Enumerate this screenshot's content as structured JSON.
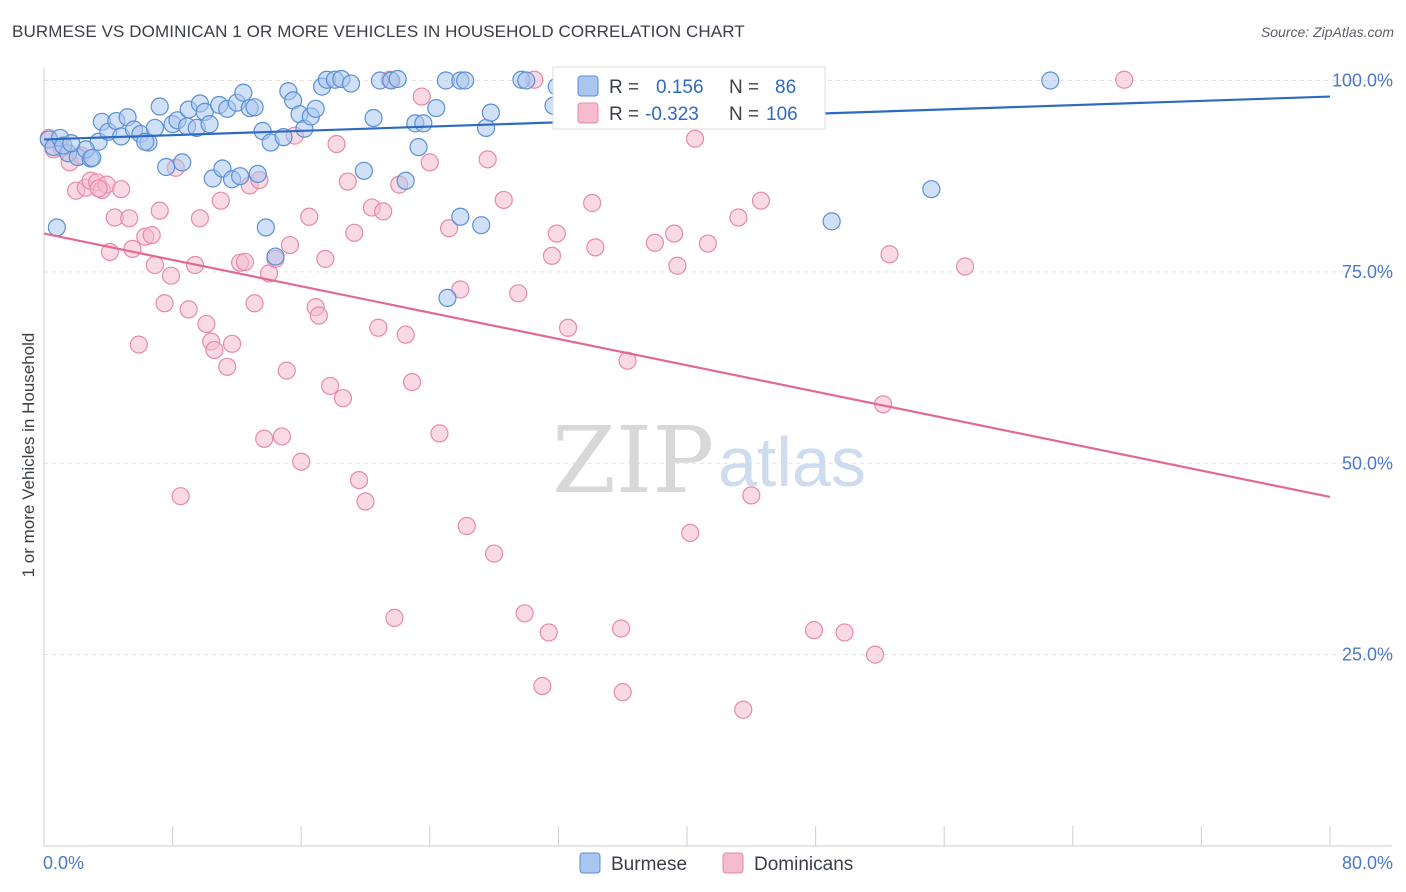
{
  "title": "BURMESE VS DOMINICAN 1 OR MORE VEHICLES IN HOUSEHOLD CORRELATION CHART",
  "source": "Source: ZipAtlas.com",
  "watermark": {
    "zip": "ZIP",
    "atlas": "atlas"
  },
  "colors": {
    "burmese_fill": "#a9c6ee",
    "burmese_stroke": "#5b8fd6",
    "burmese_line": "#2f6ac2",
    "dominican_fill": "#f4bccd",
    "dominican_stroke": "#e88aa8",
    "dominican_line": "#e06a94",
    "grid": "#e3e3e3",
    "tick_label": "#4a78c8"
  },
  "legend": {
    "rows": [
      {
        "r_label": "R =",
        "r_value": "0.156",
        "n_label": "N =",
        "n_value": "86",
        "series": "burmese"
      },
      {
        "r_label": "R =",
        "r_value": "-0.323",
        "n_label": "N =",
        "n_value": "106",
        "series": "dominican"
      }
    ]
  },
  "bottom_legend": [
    "Burmese",
    "Dominicans"
  ],
  "chart_data": {
    "type": "scatter",
    "title": "BURMESE VS DOMINICAN 1 OR MORE VEHICLES IN HOUSEHOLD CORRELATION CHART",
    "xlabel": "",
    "ylabel": "1 or more Vehicles in Household",
    "xlim": [
      0,
      80
    ],
    "ylim": [
      0,
      105
    ],
    "x_tick_labels": [
      "0.0%",
      "80.0%"
    ],
    "y_tick_labels": [
      {
        "value": 100,
        "label": "100.0%"
      },
      {
        "value": 75,
        "label": "75.0%"
      },
      {
        "value": 50,
        "label": "50.0%"
      },
      {
        "value": 25,
        "label": "25.0%"
      }
    ],
    "grid": true,
    "legend_position": "top-center",
    "series": [
      {
        "name": "Burmese",
        "r": 0.156,
        "n": 86,
        "trend": {
          "x": [
            0,
            80
          ],
          "y": [
            92.3,
            97.9
          ]
        },
        "points": [
          [
            0.3,
            92.3
          ],
          [
            0.6,
            91.3
          ],
          [
            1.0,
            92.5
          ],
          [
            1.5,
            90.5
          ],
          [
            2.1,
            90.0
          ],
          [
            2.9,
            89.8
          ],
          [
            3.4,
            92.0
          ],
          [
            3.6,
            94.6
          ],
          [
            4.0,
            93.3
          ],
          [
            4.5,
            94.7
          ],
          [
            4.8,
            92.7
          ],
          [
            5.2,
            95.2
          ],
          [
            5.6,
            93.6
          ],
          [
            6.0,
            93.0
          ],
          [
            6.5,
            91.9
          ],
          [
            6.9,
            93.8
          ],
          [
            7.2,
            96.6
          ],
          [
            7.6,
            88.7
          ],
          [
            8.0,
            94.3
          ],
          [
            8.3,
            94.8
          ],
          [
            8.6,
            89.3
          ],
          [
            8.9,
            94.0
          ],
          [
            9.0,
            96.2
          ],
          [
            9.5,
            93.8
          ],
          [
            9.7,
            97.0
          ],
          [
            10.0,
            95.9
          ],
          [
            10.3,
            94.3
          ],
          [
            10.5,
            87.2
          ],
          [
            10.9,
            96.8
          ],
          [
            11.1,
            88.5
          ],
          [
            11.4,
            96.3
          ],
          [
            11.7,
            87.1
          ],
          [
            12.0,
            97.1
          ],
          [
            12.4,
            98.4
          ],
          [
            12.8,
            96.4
          ],
          [
            13.1,
            96.5
          ],
          [
            13.3,
            87.8
          ],
          [
            13.6,
            93.4
          ],
          [
            13.8,
            80.8
          ],
          [
            14.1,
            91.9
          ],
          [
            14.4,
            77.0
          ],
          [
            14.9,
            92.6
          ],
          [
            15.2,
            98.6
          ],
          [
            15.5,
            97.4
          ],
          [
            15.9,
            95.6
          ],
          [
            16.2,
            93.7
          ],
          [
            16.6,
            95.3
          ],
          [
            16.9,
            96.3
          ],
          [
            17.3,
            99.2
          ],
          [
            17.6,
            100.1
          ],
          [
            18.1,
            100.1
          ],
          [
            18.5,
            100.2
          ],
          [
            19.1,
            99.6
          ],
          [
            19.9,
            88.2
          ],
          [
            20.5,
            95.1
          ],
          [
            20.9,
            100.0
          ],
          [
            21.6,
            100.0
          ],
          [
            22.0,
            100.2
          ],
          [
            22.5,
            86.9
          ],
          [
            23.1,
            94.4
          ],
          [
            23.3,
            91.3
          ],
          [
            23.6,
            94.4
          ],
          [
            24.4,
            96.4
          ],
          [
            25.0,
            100.0
          ],
          [
            25.9,
            100.0
          ],
          [
            26.2,
            100.0
          ],
          [
            25.1,
            71.6
          ],
          [
            25.9,
            82.2
          ],
          [
            27.2,
            81.1
          ],
          [
            27.5,
            93.8
          ],
          [
            27.8,
            95.8
          ],
          [
            29.7,
            100.1
          ],
          [
            30.0,
            100.0
          ],
          [
            31.7,
            96.7
          ],
          [
            31.9,
            99.2
          ],
          [
            34.5,
            100.0
          ],
          [
            49.0,
            81.6
          ],
          [
            55.2,
            85.8
          ],
          [
            62.6,
            100.0
          ],
          [
            0.8,
            80.8
          ],
          [
            1.2,
            91.5
          ],
          [
            2.6,
            91.0
          ],
          [
            3.0,
            89.9
          ],
          [
            1.7,
            91.8
          ],
          [
            6.3,
            92.0
          ],
          [
            12.2,
            87.5
          ]
        ]
      },
      {
        "name": "Dominicans",
        "r": -0.323,
        "n": 106,
        "trend": {
          "x": [
            0,
            80
          ],
          "y": [
            80.0,
            45.6
          ]
        },
        "points": [
          [
            0.3,
            92.5
          ],
          [
            0.6,
            91.0
          ],
          [
            1.1,
            91.2
          ],
          [
            1.6,
            89.3
          ],
          [
            2.0,
            85.6
          ],
          [
            2.3,
            90.2
          ],
          [
            2.6,
            86.0
          ],
          [
            2.9,
            86.9
          ],
          [
            3.3,
            86.7
          ],
          [
            3.6,
            85.7
          ],
          [
            3.9,
            86.4
          ],
          [
            4.1,
            77.6
          ],
          [
            4.4,
            82.1
          ],
          [
            4.8,
            85.8
          ],
          [
            5.3,
            82.0
          ],
          [
            5.5,
            78.0
          ],
          [
            5.9,
            65.5
          ],
          [
            6.3,
            79.6
          ],
          [
            6.7,
            79.8
          ],
          [
            6.9,
            75.9
          ],
          [
            7.2,
            83.0
          ],
          [
            7.5,
            70.9
          ],
          [
            7.9,
            74.5
          ],
          [
            8.2,
            88.6
          ],
          [
            8.5,
            45.7
          ],
          [
            9.0,
            70.1
          ],
          [
            9.4,
            75.9
          ],
          [
            9.7,
            82.0
          ],
          [
            10.1,
            68.2
          ],
          [
            10.4,
            65.9
          ],
          [
            10.6,
            64.8
          ],
          [
            11.0,
            84.3
          ],
          [
            11.4,
            62.6
          ],
          [
            11.7,
            65.6
          ],
          [
            12.2,
            76.2
          ],
          [
            12.5,
            76.3
          ],
          [
            12.8,
            86.3
          ],
          [
            13.1,
            70.9
          ],
          [
            13.4,
            87.0
          ],
          [
            13.7,
            53.2
          ],
          [
            14.0,
            74.8
          ],
          [
            14.4,
            76.7
          ],
          [
            14.8,
            53.5
          ],
          [
            15.1,
            62.1
          ],
          [
            15.3,
            78.5
          ],
          [
            15.6,
            92.8
          ],
          [
            16.0,
            50.2
          ],
          [
            16.5,
            82.2
          ],
          [
            16.9,
            70.4
          ],
          [
            17.1,
            69.3
          ],
          [
            17.5,
            76.7
          ],
          [
            17.8,
            60.1
          ],
          [
            18.2,
            91.7
          ],
          [
            18.6,
            58.5
          ],
          [
            18.9,
            86.8
          ],
          [
            19.3,
            80.1
          ],
          [
            19.6,
            47.8
          ],
          [
            20.0,
            45.0
          ],
          [
            20.4,
            83.4
          ],
          [
            20.8,
            67.7
          ],
          [
            21.1,
            82.9
          ],
          [
            21.5,
            100.1
          ],
          [
            21.8,
            29.8
          ],
          [
            22.1,
            86.4
          ],
          [
            22.5,
            66.8
          ],
          [
            22.9,
            60.6
          ],
          [
            23.5,
            97.9
          ],
          [
            24.0,
            89.3
          ],
          [
            24.6,
            53.9
          ],
          [
            25.2,
            80.7
          ],
          [
            25.9,
            72.7
          ],
          [
            26.3,
            41.8
          ],
          [
            27.6,
            89.7
          ],
          [
            28.0,
            38.2
          ],
          [
            28.6,
            84.4
          ],
          [
            29.5,
            72.2
          ],
          [
            29.9,
            30.4
          ],
          [
            30.5,
            100.1
          ],
          [
            31.0,
            20.9
          ],
          [
            31.4,
            27.9
          ],
          [
            31.6,
            77.1
          ],
          [
            31.9,
            80.0
          ],
          [
            32.6,
            67.7
          ],
          [
            34.1,
            84.0
          ],
          [
            34.3,
            78.2
          ],
          [
            35.9,
            28.4
          ],
          [
            36.0,
            20.1
          ],
          [
            36.3,
            63.4
          ],
          [
            38.0,
            78.8
          ],
          [
            39.2,
            80.0
          ],
          [
            39.4,
            75.8
          ],
          [
            40.2,
            40.9
          ],
          [
            40.5,
            92.4
          ],
          [
            41.3,
            78.7
          ],
          [
            43.2,
            82.1
          ],
          [
            43.5,
            17.8
          ],
          [
            44.0,
            45.8
          ],
          [
            44.6,
            84.3
          ],
          [
            47.9,
            28.2
          ],
          [
            49.8,
            27.9
          ],
          [
            51.7,
            25.0
          ],
          [
            52.2,
            57.7
          ],
          [
            52.6,
            77.3
          ],
          [
            57.3,
            75.7
          ],
          [
            67.2,
            100.1
          ],
          [
            3.4,
            85.9
          ]
        ]
      }
    ]
  }
}
